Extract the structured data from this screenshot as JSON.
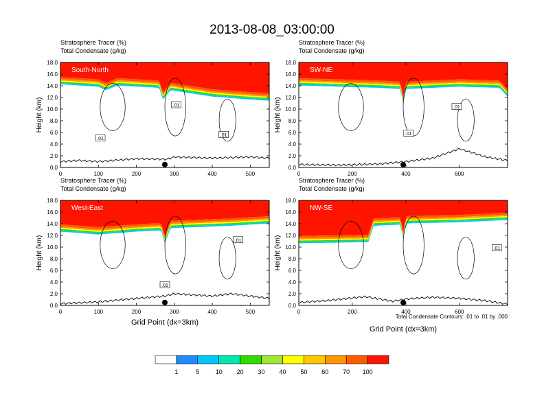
{
  "title": "2013-08-08_03:00:00",
  "panel_labels": {
    "line1": "Stratosphere Tracer   (%)",
    "line2": "Total Condensate   (g/kg)"
  },
  "axes": {
    "ylabel": "Height (km)",
    "xlabel": "Grid Point (dx=3km)"
  },
  "contour_note": "Total Condensate Contours: .01 to .01 by .000",
  "colorbar": {
    "colors": [
      "#ffffff",
      "#1e8cff",
      "#00c8ff",
      "#00e8b0",
      "#30dc00",
      "#a0e632",
      "#ffff00",
      "#ffc800",
      "#ff9600",
      "#ff5a00",
      "#ff1400"
    ],
    "labels": [
      "1",
      "5",
      "10",
      "20",
      "30",
      "40",
      "50",
      "60",
      "70",
      "100"
    ]
  },
  "chart_data": [
    {
      "type": "heatmap",
      "name": "South-North",
      "ylim": [
        0,
        18
      ],
      "yticks": [
        "0.0",
        "2.0",
        "4.0",
        "6.0",
        "8.0",
        "10.0",
        "12.0",
        "14.0",
        "16.0",
        "18.0"
      ],
      "xlim": [
        0,
        550
      ],
      "xticks": [
        "0",
        "100",
        "200",
        "300",
        "400",
        "500"
      ],
      "xtick_values": [
        0,
        100,
        200,
        300,
        400,
        500
      ],
      "marker_x": 275,
      "contour_labels": [
        ".01",
        ".01",
        ".01"
      ],
      "contour_label_pos": [
        [
          105,
          5.0
        ],
        [
          305,
          10.7
        ],
        [
          430,
          5.6
        ]
      ],
      "tropopause_km": [
        [
          0,
          14.6
        ],
        [
          100,
          14.2
        ],
        [
          120,
          13.6
        ],
        [
          150,
          14.4
        ],
        [
          260,
          14.0
        ],
        [
          270,
          12.0
        ],
        [
          290,
          13.6
        ],
        [
          400,
          12.5
        ],
        [
          500,
          12.0
        ],
        [
          550,
          11.8
        ]
      ],
      "terrain_km": [
        [
          0,
          1.0
        ],
        [
          50,
          1.2
        ],
        [
          100,
          1.0
        ],
        [
          200,
          1.5
        ],
        [
          280,
          1.4
        ],
        [
          300,
          1.8
        ],
        [
          400,
          1.6
        ],
        [
          500,
          1.8
        ],
        [
          550,
          1.6
        ]
      ]
    },
    {
      "type": "heatmap",
      "name": "SW-NE",
      "ylim": [
        0,
        18
      ],
      "yticks": [
        "0.0",
        "2.0",
        "4.0",
        "6.0",
        "8.0",
        "10.0",
        "12.0",
        "14.0",
        "16.0",
        "18.0"
      ],
      "xlim": [
        0,
        780
      ],
      "xticks": [
        "0",
        "200",
        "400",
        "600"
      ],
      "xtick_values": [
        0,
        200,
        400,
        600
      ],
      "marker_x": 390,
      "contour_labels": [
        ".01",
        ".01"
      ],
      "contour_label_pos": [
        [
          410,
          5.8
        ],
        [
          590,
          10.4
        ]
      ],
      "tropopause_km": [
        [
          0,
          14.4
        ],
        [
          300,
          14.0
        ],
        [
          380,
          13.8
        ],
        [
          390,
          11.0
        ],
        [
          400,
          13.8
        ],
        [
          600,
          14.2
        ],
        [
          750,
          14.0
        ],
        [
          780,
          12.5
        ]
      ],
      "terrain_km": [
        [
          0,
          0.5
        ],
        [
          150,
          0.4
        ],
        [
          300,
          0.6
        ],
        [
          400,
          1.0
        ],
        [
          500,
          1.6
        ],
        [
          600,
          3.2
        ],
        [
          700,
          1.8
        ],
        [
          780,
          1.2
        ]
      ]
    },
    {
      "type": "heatmap",
      "name": "West-East",
      "ylim": [
        0,
        18
      ],
      "yticks": [
        "0.0",
        "2.0",
        "4.0",
        "6.0",
        "8.0",
        "10.0",
        "12.0",
        "14.0",
        "16.0",
        "18.0"
      ],
      "xlim": [
        0,
        550
      ],
      "xticks": [
        "0",
        "100",
        "200",
        "300",
        "400",
        "500"
      ],
      "xtick_values": [
        0,
        100,
        200,
        300,
        400,
        500
      ],
      "marker_x": 275,
      "contour_labels": [
        ".01",
        ".01"
      ],
      "contour_label_pos": [
        [
          275,
          3.5
        ],
        [
          468,
          11.2
        ]
      ],
      "tropopause_km": [
        [
          0,
          13.0
        ],
        [
          100,
          12.5
        ],
        [
          200,
          13.0
        ],
        [
          265,
          13.2
        ],
        [
          275,
          11.0
        ],
        [
          290,
          13.6
        ],
        [
          450,
          14.0
        ],
        [
          550,
          14.4
        ]
      ],
      "terrain_km": [
        [
          0,
          0.3
        ],
        [
          100,
          0.6
        ],
        [
          200,
          1.2
        ],
        [
          275,
          1.6
        ],
        [
          300,
          2.0
        ],
        [
          400,
          1.6
        ],
        [
          450,
          2.0
        ],
        [
          550,
          1.2
        ]
      ]
    },
    {
      "type": "heatmap",
      "name": "NW-SE",
      "ylim": [
        0,
        18
      ],
      "yticks": [
        "0.0",
        "2.0",
        "4.0",
        "6.0",
        "8.0",
        "10.0",
        "12.0",
        "14.0",
        "16.0",
        "18.0"
      ],
      "xlim": [
        0,
        780
      ],
      "xticks": [
        "0",
        "200",
        "400",
        "600"
      ],
      "xtick_values": [
        0,
        200,
        400,
        600
      ],
      "marker_x": 390,
      "contour_labels": [
        ".01"
      ],
      "contour_label_pos": [
        [
          740,
          9.8
        ]
      ],
      "tropopause_km": [
        [
          0,
          11.0
        ],
        [
          260,
          11.2
        ],
        [
          280,
          14.0
        ],
        [
          380,
          14.2
        ],
        [
          390,
          11.5
        ],
        [
          400,
          14.4
        ],
        [
          600,
          14.6
        ],
        [
          780,
          15.0
        ]
      ],
      "terrain_km": [
        [
          0,
          0.5
        ],
        [
          100,
          0.8
        ],
        [
          250,
          1.5
        ],
        [
          350,
          0.7
        ],
        [
          400,
          1.1
        ],
        [
          500,
          1.4
        ],
        [
          600,
          1.2
        ],
        [
          700,
          0.8
        ],
        [
          780,
          0.2
        ]
      ]
    }
  ]
}
